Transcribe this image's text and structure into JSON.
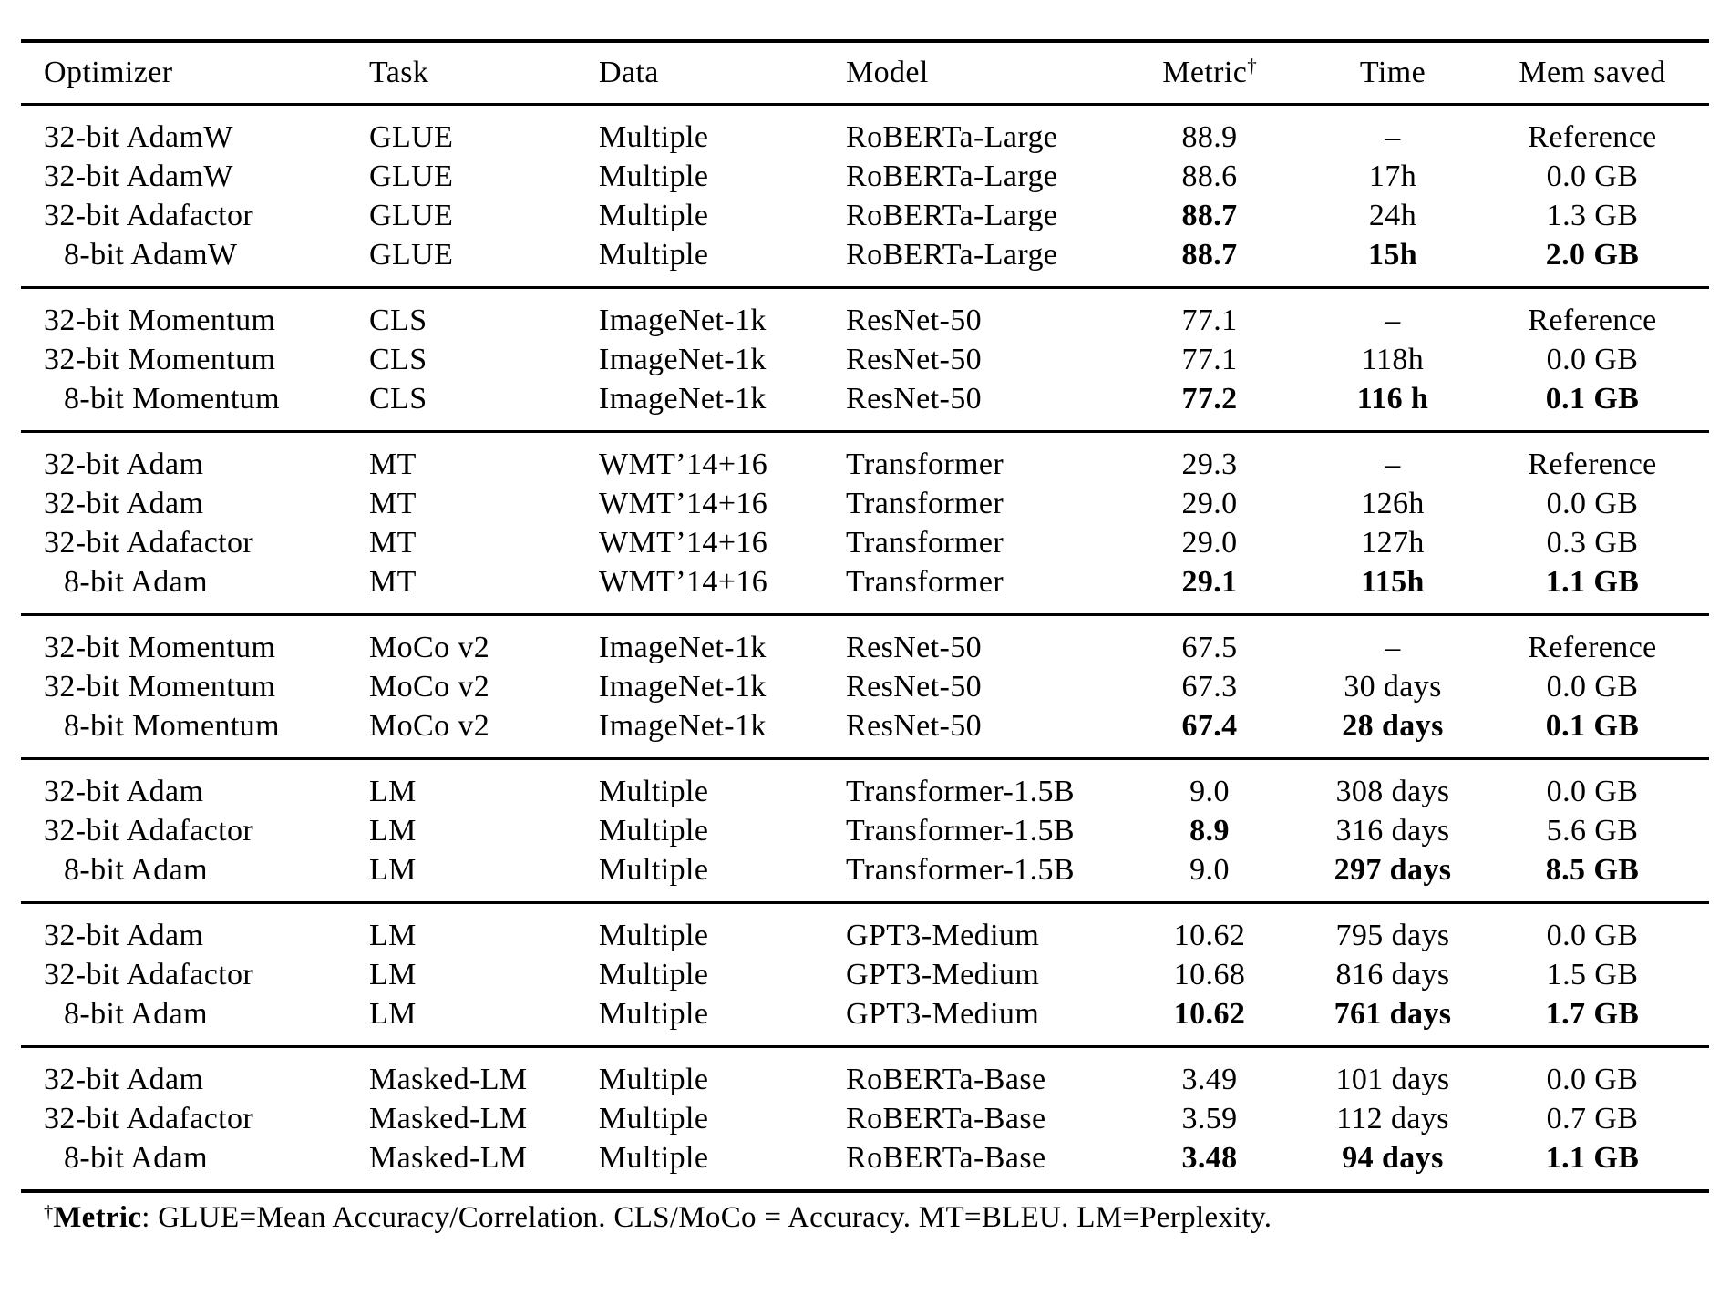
{
  "table": {
    "metric_label": "Metric",
    "metric_sup": "†",
    "footnote": {
      "sup": "†",
      "bold": "Metric",
      "rest": ": GLUE=Mean Accuracy/Correlation. CLS/MoCo = Accuracy. MT=BLEU. LM=Perplexity."
    }
  },
  "chart_data": {
    "type": "table",
    "columns": [
      "Optimizer",
      "Task",
      "Data",
      "Model",
      "Metric†",
      "Time",
      "Mem saved"
    ],
    "groups": [
      {
        "rows": [
          {
            "optimizer": "32-bit AdamW",
            "task": "GLUE",
            "data": "Multiple",
            "model": "RoBERTa-Large",
            "metric": "88.9",
            "time": "–",
            "mem": "Reference",
            "bold": []
          },
          {
            "optimizer": "32-bit AdamW",
            "task": "GLUE",
            "data": "Multiple",
            "model": "RoBERTa-Large",
            "metric": "88.6",
            "time": "17h",
            "mem": "0.0 GB",
            "bold": []
          },
          {
            "optimizer": "32-bit Adafactor",
            "task": "GLUE",
            "data": "Multiple",
            "model": "RoBERTa-Large",
            "metric": "88.7",
            "time": "24h",
            "mem": "1.3 GB",
            "bold": [
              "metric"
            ]
          },
          {
            "optimizer": "8-bit AdamW",
            "task": "GLUE",
            "data": "Multiple",
            "model": "RoBERTa-Large",
            "metric": "88.7",
            "time": "15h",
            "mem": "2.0 GB",
            "bold": [
              "metric",
              "time",
              "mem"
            ]
          }
        ]
      },
      {
        "rows": [
          {
            "optimizer": "32-bit Momentum",
            "task": "CLS",
            "data": "ImageNet-1k",
            "model": "ResNet-50",
            "metric": "77.1",
            "time": "–",
            "mem": "Reference",
            "bold": []
          },
          {
            "optimizer": "32-bit Momentum",
            "task": "CLS",
            "data": "ImageNet-1k",
            "model": "ResNet-50",
            "metric": "77.1",
            "time": "118h",
            "mem": "0.0 GB",
            "bold": []
          },
          {
            "optimizer": "8-bit Momentum",
            "task": "CLS",
            "data": "ImageNet-1k",
            "model": "ResNet-50",
            "metric": "77.2",
            "time": "116 h",
            "mem": "0.1 GB",
            "bold": [
              "metric",
              "time",
              "mem"
            ]
          }
        ]
      },
      {
        "rows": [
          {
            "optimizer": "32-bit Adam",
            "task": "MT",
            "data": "WMT’14+16",
            "model": "Transformer",
            "metric": "29.3",
            "time": "–",
            "mem": "Reference",
            "bold": []
          },
          {
            "optimizer": "32-bit Adam",
            "task": "MT",
            "data": "WMT’14+16",
            "model": "Transformer",
            "metric": "29.0",
            "time": "126h",
            "mem": "0.0 GB",
            "bold": []
          },
          {
            "optimizer": "32-bit Adafactor",
            "task": "MT",
            "data": "WMT’14+16",
            "model": "Transformer",
            "metric": "29.0",
            "time": "127h",
            "mem": "0.3 GB",
            "bold": []
          },
          {
            "optimizer": "8-bit Adam",
            "task": "MT",
            "data": "WMT’14+16",
            "model": "Transformer",
            "metric": "29.1",
            "time": "115h",
            "mem": "1.1 GB",
            "bold": [
              "metric",
              "time",
              "mem"
            ]
          }
        ]
      },
      {
        "rows": [
          {
            "optimizer": "32-bit Momentum",
            "task": "MoCo v2",
            "data": "ImageNet-1k",
            "model": "ResNet-50",
            "metric": "67.5",
            "time": "–",
            "mem": "Reference",
            "bold": []
          },
          {
            "optimizer": "32-bit Momentum",
            "task": "MoCo v2",
            "data": "ImageNet-1k",
            "model": "ResNet-50",
            "metric": "67.3",
            "time": "30 days",
            "mem": "0.0 GB",
            "bold": []
          },
          {
            "optimizer": "8-bit Momentum",
            "task": "MoCo v2",
            "data": "ImageNet-1k",
            "model": "ResNet-50",
            "metric": "67.4",
            "time": "28 days",
            "mem": "0.1 GB",
            "bold": [
              "metric",
              "time",
              "mem"
            ]
          }
        ]
      },
      {
        "rows": [
          {
            "optimizer": "32-bit Adam",
            "task": "LM",
            "data": "Multiple",
            "model": "Transformer-1.5B",
            "metric": "9.0",
            "time": "308 days",
            "mem": "0.0 GB",
            "bold": []
          },
          {
            "optimizer": "32-bit Adafactor",
            "task": "LM",
            "data": "Multiple",
            "model": "Transformer-1.5B",
            "metric": "8.9",
            "time": "316 days",
            "mem": "5.6 GB",
            "bold": [
              "metric"
            ]
          },
          {
            "optimizer": "8-bit Adam",
            "task": "LM",
            "data": "Multiple",
            "model": "Transformer-1.5B",
            "metric": "9.0",
            "time": "297 days",
            "mem": "8.5 GB",
            "bold": [
              "time",
              "mem"
            ]
          }
        ]
      },
      {
        "rows": [
          {
            "optimizer": "32-bit Adam",
            "task": "LM",
            "data": "Multiple",
            "model": "GPT3-Medium",
            "metric": "10.62",
            "time": "795 days",
            "mem": "0.0 GB",
            "bold": []
          },
          {
            "optimizer": "32-bit Adafactor",
            "task": "LM",
            "data": "Multiple",
            "model": "GPT3-Medium",
            "metric": "10.68",
            "time": "816 days",
            "mem": "1.5 GB",
            "bold": []
          },
          {
            "optimizer": "8-bit Adam",
            "task": "LM",
            "data": "Multiple",
            "model": "GPT3-Medium",
            "metric": "10.62",
            "time": "761 days",
            "mem": "1.7 GB",
            "bold": [
              "metric",
              "time",
              "mem"
            ]
          }
        ]
      },
      {
        "rows": [
          {
            "optimizer": "32-bit Adam",
            "task": "Masked-LM",
            "data": "Multiple",
            "model": "RoBERTa-Base",
            "metric": "3.49",
            "time": "101 days",
            "mem": "0.0 GB",
            "bold": []
          },
          {
            "optimizer": "32-bit Adafactor",
            "task": "Masked-LM",
            "data": "Multiple",
            "model": "RoBERTa-Base",
            "metric": "3.59",
            "time": "112 days",
            "mem": "0.7 GB",
            "bold": []
          },
          {
            "optimizer": "8-bit Adam",
            "task": "Masked-LM",
            "data": "Multiple",
            "model": "RoBERTa-Base",
            "metric": "3.48",
            "time": "94 days",
            "mem": "1.1 GB",
            "bold": [
              "metric",
              "time",
              "mem"
            ]
          }
        ]
      }
    ]
  }
}
